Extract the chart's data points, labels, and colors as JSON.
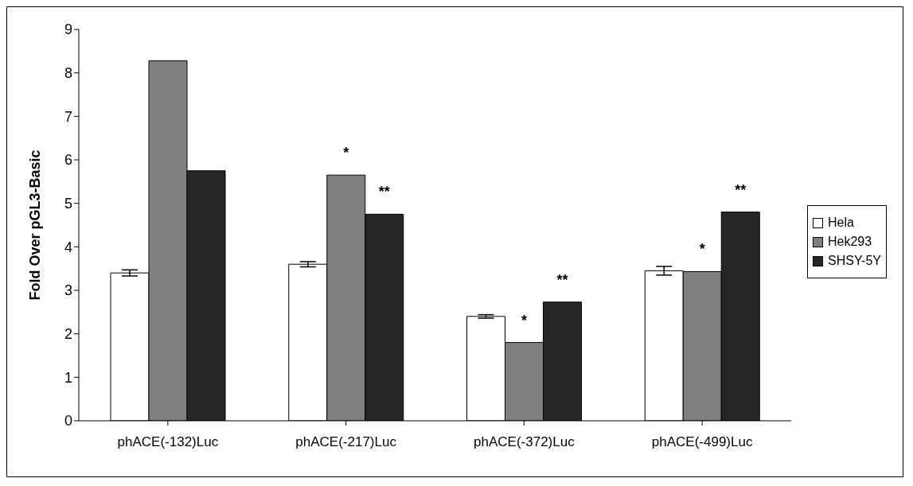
{
  "chart_data": {
    "type": "bar",
    "ylabel": "Fold Over pGL3-Basic",
    "categories": [
      "phACE(-132)Luc",
      "phACE(-217)Luc",
      "phACE(-372)Luc",
      "phACE(-499)Luc"
    ],
    "series": [
      {
        "name": "Hela",
        "color": "#ffffff",
        "values": [
          3.4,
          3.6,
          2.4,
          3.45
        ],
        "errors": [
          0.07,
          0.06,
          0.04,
          0.1
        ]
      },
      {
        "name": "Hek293",
        "color": "#808080",
        "values": [
          8.28,
          5.65,
          1.8,
          3.43
        ],
        "value_labels": [
          null,
          "*",
          "*",
          "*"
        ]
      },
      {
        "name": "SHSY-5Y",
        "color": "#262626",
        "values": [
          5.75,
          4.75,
          2.73,
          4.8
        ],
        "value_labels": [
          null,
          "**",
          "**",
          "**"
        ]
      }
    ],
    "ylim": [
      0,
      9
    ],
    "yticks": [
      0,
      1,
      2,
      3,
      4,
      5,
      6,
      7,
      8,
      9
    ],
    "grid": false,
    "legend": "right"
  }
}
